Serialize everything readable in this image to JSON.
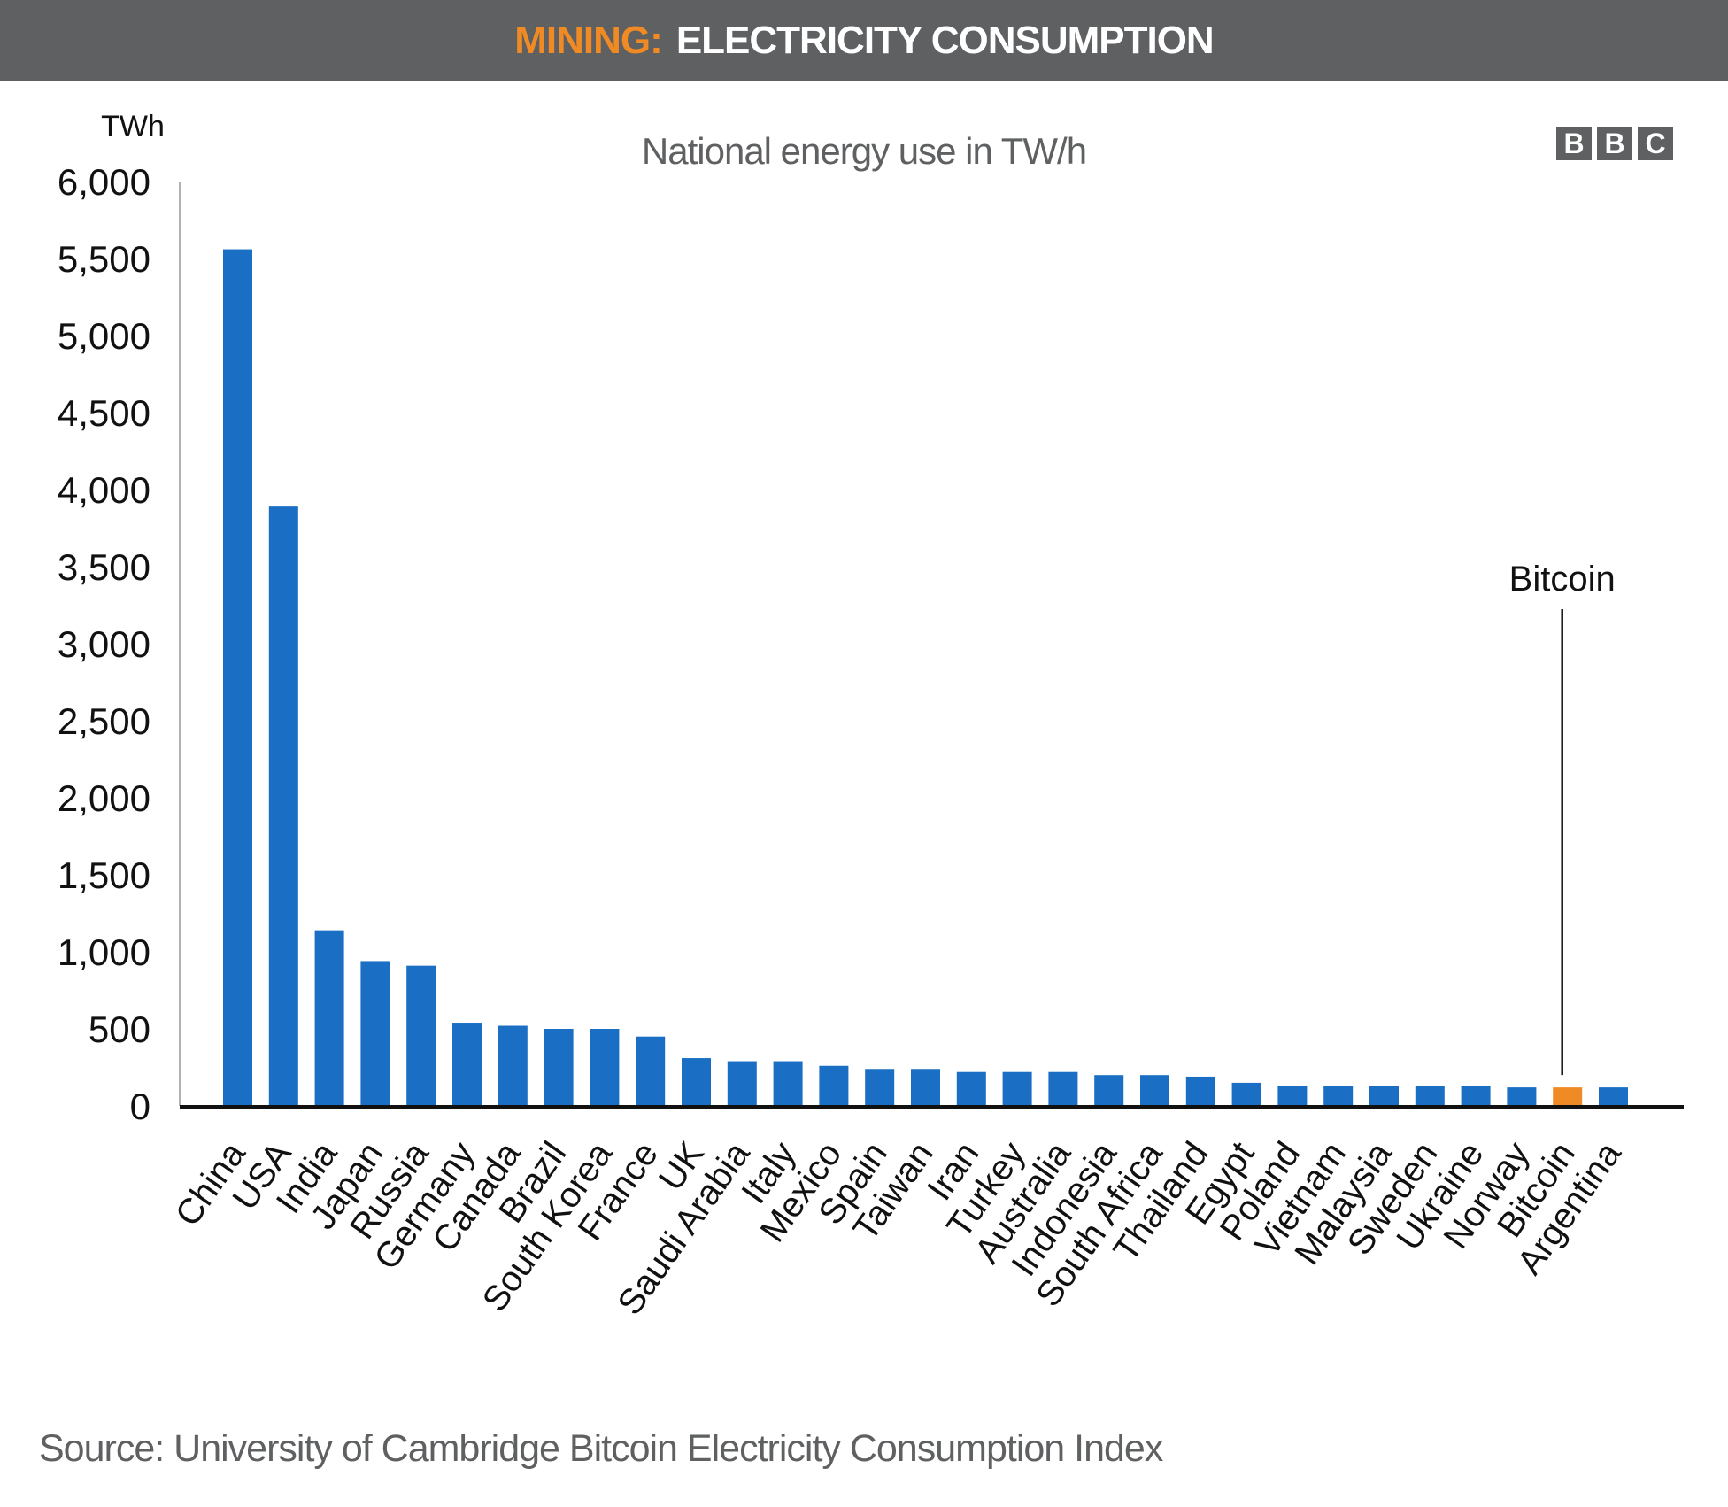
{
  "header": {
    "prefix": "MINING:",
    "title": "ELECTRICITY CONSUMPTION"
  },
  "logo": {
    "letters": [
      "B",
      "B",
      "C"
    ]
  },
  "source": "Source: University of Cambridge Bitcoin Electricity Consumption Index",
  "colors": {
    "bar": "#1a6fc4",
    "highlight": "#f08a24",
    "header_bg": "#5e6062",
    "prefix": "#f08a24"
  },
  "chart_data": {
    "type": "bar",
    "title": "National energy use in TW/h",
    "ylabel": "TWh",
    "ylim": [
      0,
      6000
    ],
    "yticks": [
      0,
      500,
      1000,
      1500,
      2000,
      2500,
      3000,
      3500,
      4000,
      4500,
      5000,
      5500,
      6000
    ],
    "ytick_labels": [
      "0",
      "500",
      "1,000",
      "1,500",
      "2,000",
      "2,500",
      "3,000",
      "3,500",
      "4,000",
      "4,500",
      "5,000",
      "5,500",
      "6,000"
    ],
    "categories": [
      "China",
      "USA",
      "India",
      "Japan",
      "Russia",
      "Germany",
      "Canada",
      "Brazil",
      "South Korea",
      "France",
      "UK",
      "Saudi Arabia",
      "Italy",
      "Mexico",
      "Spain",
      "Taiwan",
      "Iran",
      "Turkey",
      "Australia",
      "Indonesia",
      "South Africa",
      "Thailand",
      "Egypt",
      "Poland",
      "Vietnam",
      "Malaysia",
      "Sweden",
      "Ukraine",
      "Norway",
      "Bitcoin",
      "Argentina"
    ],
    "values": [
      5560,
      3890,
      1140,
      940,
      910,
      540,
      520,
      500,
      500,
      450,
      310,
      290,
      290,
      260,
      240,
      240,
      220,
      220,
      220,
      200,
      200,
      190,
      150,
      130,
      130,
      130,
      130,
      130,
      120,
      120,
      120
    ],
    "highlight_category": "Bitcoin",
    "annotation": {
      "text": "Bitcoin",
      "target": "Bitcoin"
    },
    "grid": false,
    "legend": "none"
  }
}
